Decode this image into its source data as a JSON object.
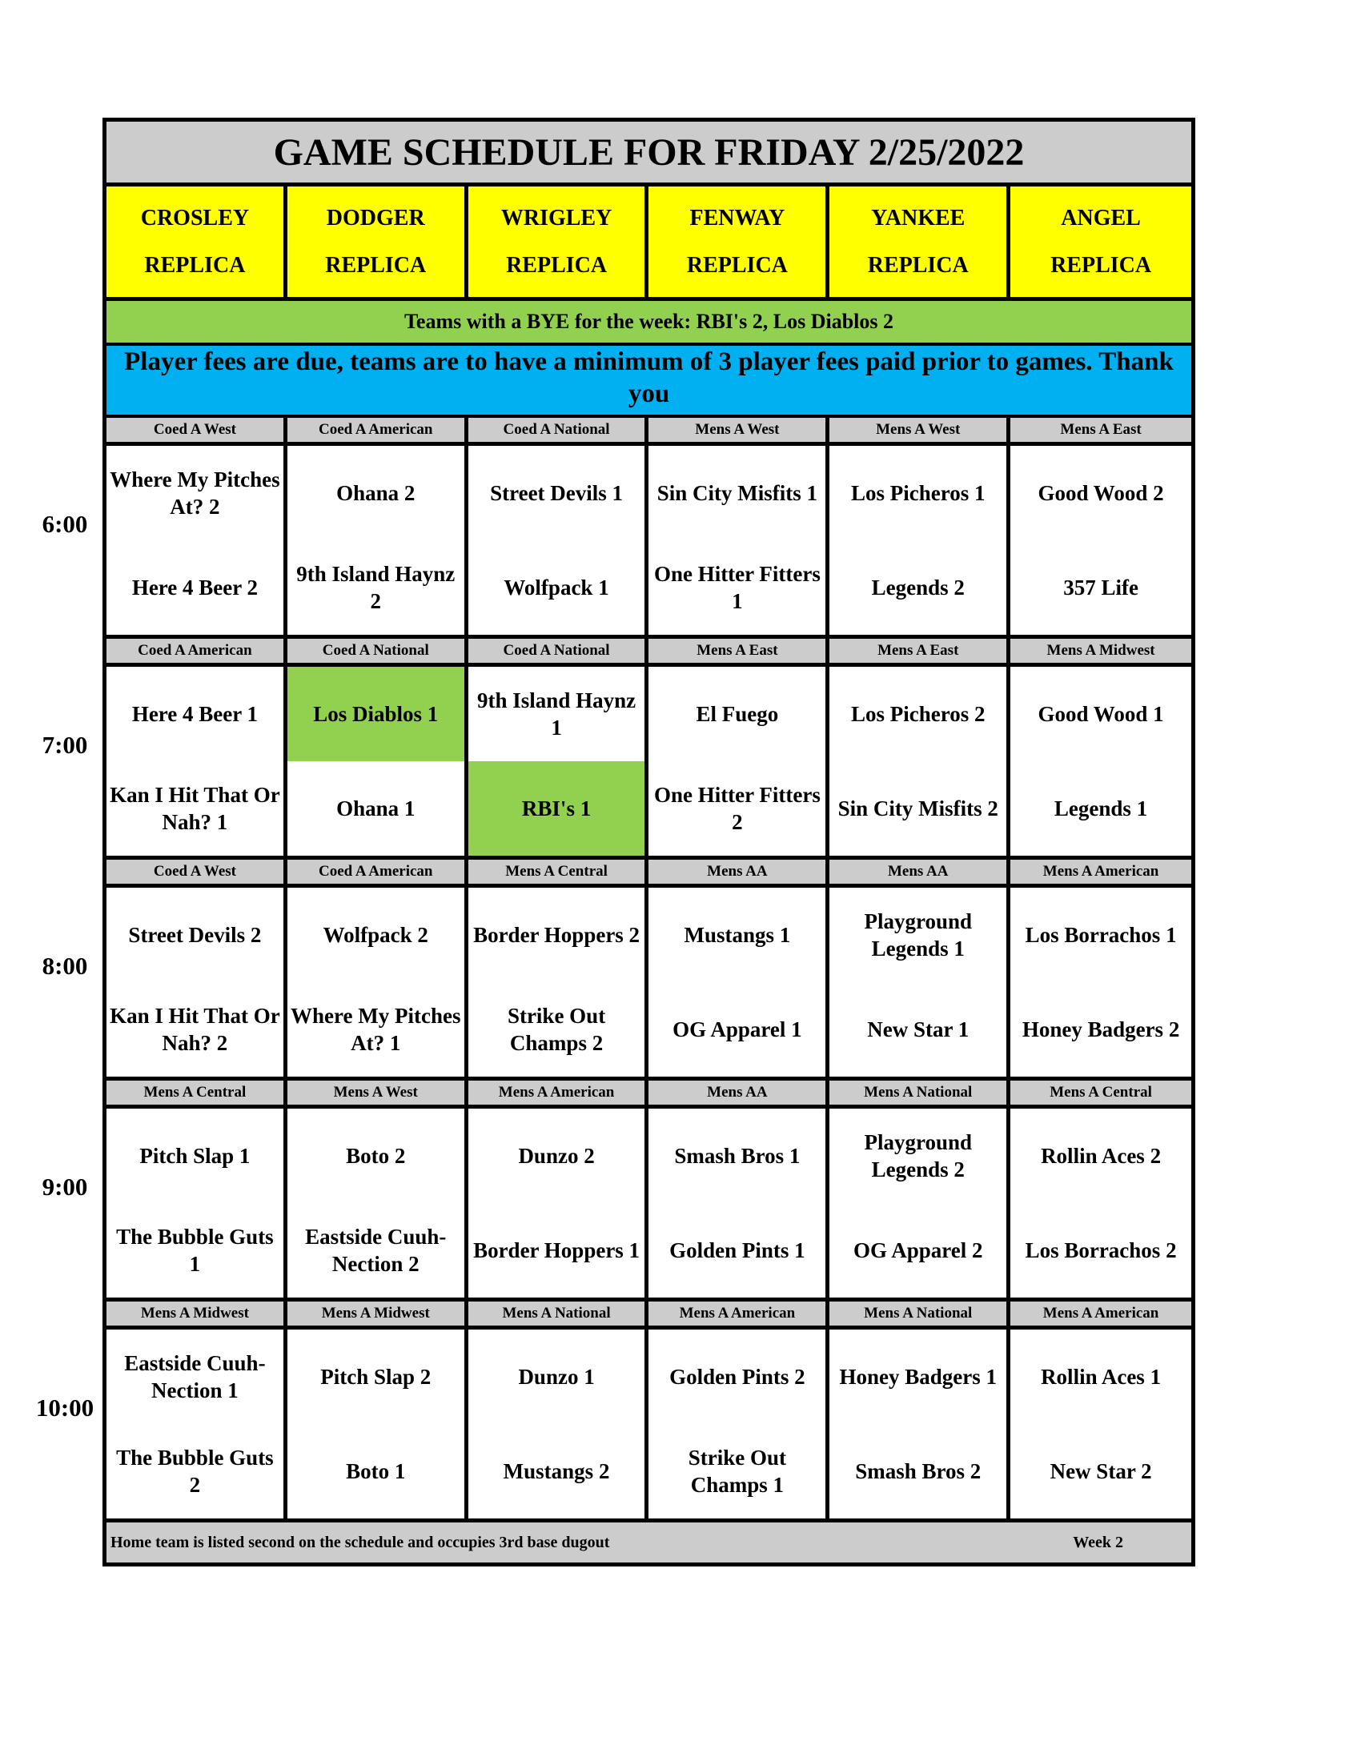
{
  "title": "GAME SCHEDULE FOR FRIDAY 2/25/2022",
  "fields": [
    [
      "CROSLEY",
      "REPLICA"
    ],
    [
      "DODGER",
      "REPLICA"
    ],
    [
      "WRIGLEY",
      "REPLICA"
    ],
    [
      "FENWAY",
      "REPLICA"
    ],
    [
      "YANKEE",
      "REPLICA"
    ],
    [
      "ANGEL",
      "REPLICA"
    ]
  ],
  "bye_text": "Teams with a BYE for the week: RBI's 2, Los Diablos 2",
  "fees_text": "Player fees are due, teams are to have a minimum of 3 player fees paid prior to games. Thank you",
  "highlight_color": "#92d050",
  "slots": [
    {
      "time": "6:00",
      "divisions": [
        "Coed A West",
        "Coed A American",
        "Coed A National",
        "Mens A West",
        "Mens A West",
        "Mens A East"
      ],
      "games": [
        [
          "Where My Pitches At? 2",
          "Here 4 Beer 2"
        ],
        [
          "Ohana 2",
          "9th Island Haynz 2"
        ],
        [
          "Street Devils 1",
          "Wolfpack 1"
        ],
        [
          "Sin City Misfits 1",
          "One Hitter Fitters 1"
        ],
        [
          "Los Picheros 1",
          "Legends 2"
        ],
        [
          "Good Wood 2",
          "357 Life"
        ]
      ]
    },
    {
      "time": "7:00",
      "divisions": [
        "Coed A American",
        "Coed A National",
        "Coed A National",
        "Mens A East",
        "Mens A East",
        "Mens A Midwest"
      ],
      "games": [
        [
          "Here 4 Beer 1",
          "Kan I Hit That Or Nah? 1"
        ],
        [
          "Los Diablos 1",
          "Ohana 1"
        ],
        [
          "9th Island Haynz 1",
          "RBI's 1"
        ],
        [
          "El Fuego",
          "One Hitter Fitters 2"
        ],
        [
          "Los Picheros 2",
          "Sin City Misfits 2"
        ],
        [
          "Good Wood 1",
          "Legends 1"
        ]
      ],
      "highlighted": [
        [
          1,
          0
        ],
        [
          2,
          1
        ]
      ]
    },
    {
      "time": "8:00",
      "divisions": [
        "Coed A West",
        "Coed A American",
        "Mens A Central",
        "Mens AA",
        "Mens AA",
        "Mens A American"
      ],
      "games": [
        [
          "Street Devils 2",
          "Kan I Hit That Or Nah? 2"
        ],
        [
          "Wolfpack 2",
          "Where My Pitches At? 1"
        ],
        [
          "Border Hoppers 2",
          "Strike Out Champs 2"
        ],
        [
          "Mustangs 1",
          "OG Apparel 1"
        ],
        [
          "Playground Legends 1",
          "New Star 1"
        ],
        [
          "Los Borrachos 1",
          "Honey Badgers 2"
        ]
      ]
    },
    {
      "time": "9:00",
      "divisions": [
        "Mens A Central",
        "Mens A West",
        "Mens A American",
        "Mens AA",
        "Mens A National",
        "Mens A Central"
      ],
      "games": [
        [
          "Pitch Slap 1",
          "The Bubble Guts 1"
        ],
        [
          "Boto 2",
          "Eastside Cuuh-Nection 2"
        ],
        [
          "Dunzo 2",
          "Border Hoppers 1"
        ],
        [
          "Smash Bros 1",
          "Golden Pints 1"
        ],
        [
          "Playground Legends 2",
          "OG Apparel 2"
        ],
        [
          "Rollin Aces 2",
          "Los Borrachos 2"
        ]
      ]
    },
    {
      "time": "10:00",
      "divisions": [
        "Mens A Midwest",
        "Mens A Midwest",
        "Mens A National",
        "Mens A American",
        "Mens A National",
        "Mens A American"
      ],
      "games": [
        [
          "Eastside Cuuh-Nection 1",
          "The Bubble Guts 2"
        ],
        [
          "Pitch Slap 2",
          "Boto 1"
        ],
        [
          "Dunzo 1",
          "Mustangs 2"
        ],
        [
          "Golden Pints 2",
          "Strike Out Champs 1"
        ],
        [
          "Honey Badgers 1",
          "Smash Bros 2"
        ],
        [
          "Rollin Aces 1",
          "New Star 2"
        ]
      ]
    }
  ],
  "footer": {
    "note": "Home team is listed second on the schedule and occupies 3rd base dugout",
    "week": "Week 2"
  }
}
